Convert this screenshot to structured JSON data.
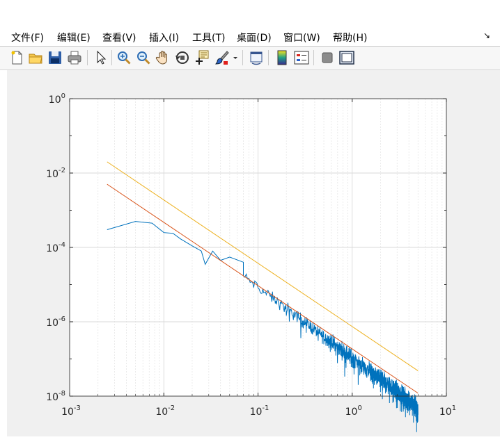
{
  "menu": {
    "items": [
      {
        "label": "文件(F)"
      },
      {
        "label": "编辑(E)"
      },
      {
        "label": "查看(V)"
      },
      {
        "label": "插入(I)"
      },
      {
        "label": "工具(T)"
      },
      {
        "label": "桌面(D)"
      },
      {
        "label": "窗口(W)"
      },
      {
        "label": "帮助(H)"
      }
    ],
    "dock_glyph": "↘"
  },
  "toolbar": {
    "icons": [
      "new-figure-icon",
      "open-file-icon",
      "save-icon",
      "print-icon",
      "pointer-icon",
      "zoom-in-icon",
      "zoom-out-icon",
      "pan-hand-icon",
      "rotate-3d-icon",
      "data-cursor-icon",
      "brush-icon",
      "brush-dropdown-icon",
      "link-plot-icon",
      "colorbar-icon",
      "legend-icon",
      "hide-plot-tools-icon",
      "show-plot-tools-icon"
    ]
  },
  "colors": {
    "signal": "#0072bd",
    "fit_lower": "#d95319",
    "fit_upper": "#edb120",
    "grid": "#d9d9d9",
    "figure_bg": "#f0f0f0"
  },
  "chart_data": {
    "type": "line",
    "xscale": "log",
    "yscale": "log",
    "xlim": [
      0.001,
      10
    ],
    "ylim": [
      1e-08,
      1
    ],
    "grid": true,
    "minor_grid_x": true,
    "x_tick_labels": [
      {
        "base": "10",
        "exp": "-3"
      },
      {
        "base": "10",
        "exp": "-2"
      },
      {
        "base": "10",
        "exp": "-1"
      },
      {
        "base": "10",
        "exp": "0"
      },
      {
        "base": "10",
        "exp": "1"
      }
    ],
    "y_tick_labels": [
      {
        "base": "10",
        "exp": "0"
      },
      {
        "base": "10",
        "exp": "-2"
      },
      {
        "base": "10",
        "exp": "-4"
      },
      {
        "base": "10",
        "exp": "-6"
      },
      {
        "base": "10",
        "exp": "-8"
      }
    ],
    "series": [
      {
        "style": "noisy-spectrum",
        "color": "#0072bd",
        "x_range": [
          0.0025,
          5
        ],
        "points": [
          [
            0.0025,
            0.0003
          ],
          [
            0.005,
            0.0005
          ],
          [
            0.0075,
            0.00045
          ],
          [
            0.01,
            0.00025
          ],
          [
            0.0125,
            0.00024
          ],
          [
            0.015,
            0.00017
          ],
          [
            0.02,
            0.00011
          ],
          [
            0.025,
            8e-05
          ],
          [
            0.0275,
            3.5e-05
          ],
          [
            0.033,
            8e-05
          ],
          [
            0.04,
            4.5e-05
          ],
          [
            0.05,
            5.5e-05
          ],
          [
            0.07,
            4e-05
          ],
          [
            0.1,
            1.2e-05
          ],
          [
            0.2,
            4e-06
          ],
          [
            0.5,
            7e-07
          ],
          [
            1,
            2.5e-07
          ],
          [
            2,
            7e-08
          ],
          [
            5,
            3e-08
          ]
        ],
        "baseline": {
          "x": 0.1,
          "y": 8.5e-06,
          "slope": -1.9
        },
        "noise_log10": 0.35
      },
      {
        "style": "line",
        "color": "#d95319",
        "x": [
          0.0025,
          5
        ],
        "y": [
          0.005,
          1.2e-08
        ]
      },
      {
        "style": "line",
        "color": "#edb120",
        "x": [
          0.0025,
          5
        ],
        "y": [
          0.02,
          4.8e-08
        ]
      }
    ]
  }
}
